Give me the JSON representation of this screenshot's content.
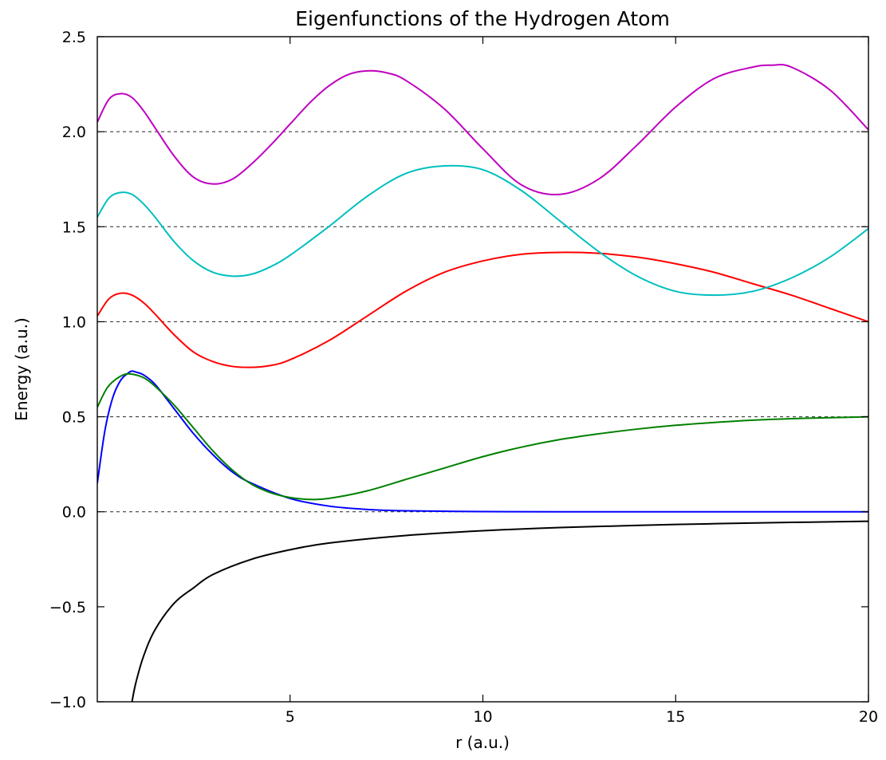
{
  "chart_data": {
    "type": "line",
    "title": "Eigenfunctions of the Hydrogen Atom",
    "xlabel": "r (a.u.)",
    "ylabel": "Energy (a.u.)",
    "xlim": [
      0,
      20
    ],
    "ylim": [
      -1.0,
      2.5
    ],
    "xticks": [
      5,
      10,
      15,
      20
    ],
    "xtick_labels": [
      "5",
      "10",
      "15",
      "20"
    ],
    "yticks": [
      -1.0,
      -0.5,
      0.0,
      0.5,
      1.0,
      1.5,
      2.0,
      2.5
    ],
    "ytick_labels": [
      "−1.0",
      "−0.5",
      "0.0",
      "0.5",
      "1.0",
      "1.5",
      "2.0",
      "2.5"
    ],
    "reference_lines": [
      0.0,
      0.5,
      1.0,
      1.5,
      2.0
    ],
    "grid": false,
    "series": [
      {
        "color": "#000000",
        "x": [
          0.9,
          1.0,
          1.2,
          1.5,
          2.0,
          2.5,
          3.0,
          4.0,
          5.0,
          6.0,
          8.0,
          10.0,
          12.0,
          15.0,
          18.0,
          20.0
        ],
        "y": [
          -1.0,
          -0.9,
          -0.76,
          -0.62,
          -0.48,
          -0.4,
          -0.33,
          -0.25,
          -0.2,
          -0.165,
          -0.125,
          -0.1,
          -0.083,
          -0.067,
          -0.056,
          -0.05
        ]
      },
      {
        "color": "#0000ff",
        "x": [
          0.0,
          0.2,
          0.4,
          0.6,
          0.8,
          0.9,
          1.0,
          1.2,
          1.5,
          2.0,
          2.5,
          3.0,
          3.5,
          4.0,
          5.0,
          6.0,
          7.0,
          8.0,
          10.0,
          12.0,
          15.0,
          20.0
        ],
        "y": [
          0.15,
          0.43,
          0.6,
          0.69,
          0.73,
          0.74,
          0.735,
          0.72,
          0.67,
          0.54,
          0.41,
          0.3,
          0.21,
          0.15,
          0.07,
          0.03,
          0.012,
          0.005,
          0.001,
          0.0,
          0.0,
          0.0
        ]
      },
      {
        "color": "#008000",
        "x": [
          0.0,
          0.25,
          0.5,
          0.75,
          1.0,
          1.25,
          1.5,
          2.0,
          2.5,
          3.0,
          3.5,
          4.0,
          4.5,
          5.0,
          5.5,
          6.0,
          7.0,
          8.0,
          9.0,
          10.0,
          11.0,
          12.0,
          13.0,
          14.0,
          15.0,
          16.0,
          17.0,
          18.0,
          19.0,
          20.0
        ],
        "y": [
          0.55,
          0.65,
          0.7,
          0.725,
          0.72,
          0.7,
          0.66,
          0.56,
          0.44,
          0.32,
          0.22,
          0.145,
          0.1,
          0.075,
          0.065,
          0.07,
          0.11,
          0.17,
          0.23,
          0.29,
          0.34,
          0.38,
          0.41,
          0.435,
          0.455,
          0.47,
          0.482,
          0.49,
          0.495,
          0.5
        ]
      },
      {
        "color": "#ff0000",
        "x": [
          0.0,
          0.3,
          0.6,
          0.9,
          1.2,
          1.5,
          2.0,
          2.5,
          3.0,
          3.5,
          4.0,
          4.5,
          5.0,
          6.0,
          7.0,
          8.0,
          9.0,
          10.0,
          11.0,
          12.0,
          13.0,
          14.0,
          15.0,
          16.0,
          17.0,
          18.0,
          19.0,
          20.0
        ],
        "y": [
          1.03,
          1.12,
          1.15,
          1.14,
          1.1,
          1.04,
          0.93,
          0.84,
          0.79,
          0.765,
          0.76,
          0.77,
          0.8,
          0.9,
          1.03,
          1.16,
          1.26,
          1.32,
          1.355,
          1.365,
          1.36,
          1.34,
          1.305,
          1.26,
          1.2,
          1.14,
          1.07,
          1.0
        ]
      },
      {
        "color": "#00bfbf",
        "x": [
          0.0,
          0.3,
          0.6,
          0.9,
          1.2,
          1.5,
          2.0,
          2.5,
          3.0,
          3.5,
          4.0,
          4.5,
          5.0,
          6.0,
          7.0,
          8.0,
          9.0,
          10.0,
          11.0,
          12.0,
          13.0,
          14.0,
          15.0,
          16.0,
          17.0,
          18.0,
          19.0,
          20.0
        ],
        "y": [
          1.55,
          1.65,
          1.68,
          1.67,
          1.62,
          1.55,
          1.42,
          1.32,
          1.26,
          1.24,
          1.25,
          1.29,
          1.35,
          1.5,
          1.66,
          1.78,
          1.82,
          1.8,
          1.69,
          1.53,
          1.37,
          1.24,
          1.16,
          1.14,
          1.16,
          1.23,
          1.34,
          1.49
        ]
      },
      {
        "color": "#bf00bf",
        "x": [
          0.0,
          0.3,
          0.6,
          0.9,
          1.2,
          1.5,
          2.0,
          2.5,
          3.0,
          3.5,
          4.0,
          4.5,
          5.0,
          5.5,
          6.0,
          6.5,
          7.0,
          7.5,
          8.0,
          9.0,
          10.0,
          11.0,
          12.0,
          13.0,
          14.0,
          15.0,
          16.0,
          17.0,
          17.5,
          18.0,
          19.0,
          20.0
        ],
        "y": [
          2.05,
          2.17,
          2.2,
          2.18,
          2.11,
          2.02,
          1.87,
          1.76,
          1.725,
          1.75,
          1.83,
          1.93,
          2.04,
          2.15,
          2.24,
          2.3,
          2.32,
          2.31,
          2.27,
          2.12,
          1.91,
          1.72,
          1.67,
          1.75,
          1.93,
          2.13,
          2.28,
          2.34,
          2.35,
          2.34,
          2.22,
          2.01
        ]
      }
    ]
  }
}
